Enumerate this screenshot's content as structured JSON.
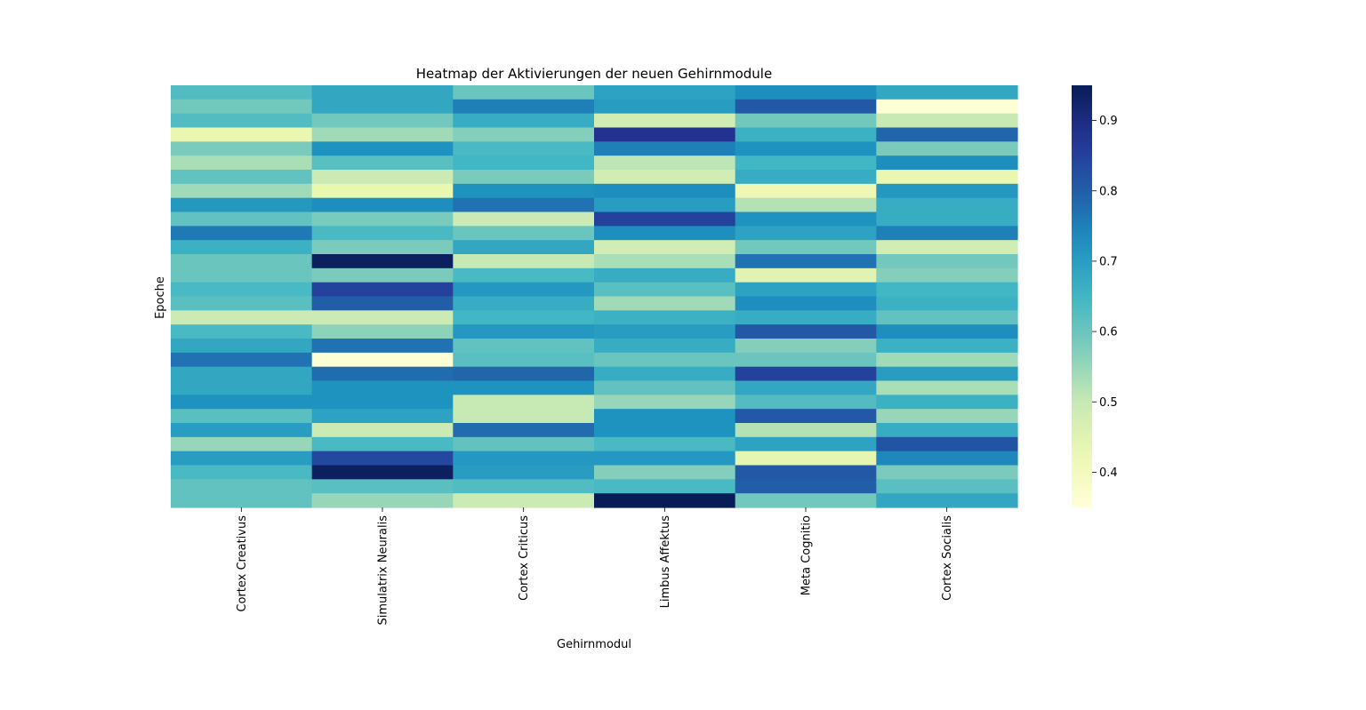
{
  "chart_data": {
    "type": "heatmap",
    "title": "Heatmap der Aktivierungen der neuen Gehirnmodule",
    "xlabel": "Gehirnmodul",
    "ylabel": "Epoche",
    "columns": [
      "Cortex Creativus",
      "Simulatrix Neuralis",
      "Cortex Criticus",
      "Limbus Affektus",
      "Meta Cognitio",
      "Cortex Socialis"
    ],
    "colormap": "YlGnBu",
    "vmin": 0.35,
    "vmax": 0.95,
    "colorbar_ticks": [
      "0.4",
      "0.5",
      "0.6",
      "0.7",
      "0.8",
      "0.9"
    ],
    "colorbar_tick_values": [
      0.4,
      0.5,
      0.6,
      0.7,
      0.8,
      0.9
    ],
    "grid": false,
    "values": [
      [
        0.63,
        0.68,
        0.6,
        0.69,
        0.73,
        0.68
      ],
      [
        0.59,
        0.68,
        0.75,
        0.7,
        0.81,
        0.36
      ],
      [
        0.63,
        0.59,
        0.67,
        0.48,
        0.59,
        0.5
      ],
      [
        0.43,
        0.54,
        0.57,
        0.88,
        0.66,
        0.79
      ],
      [
        0.58,
        0.72,
        0.64,
        0.75,
        0.72,
        0.58
      ],
      [
        0.53,
        0.62,
        0.65,
        0.51,
        0.65,
        0.73
      ],
      [
        0.61,
        0.49,
        0.58,
        0.48,
        0.67,
        0.43
      ],
      [
        0.54,
        0.43,
        0.72,
        0.73,
        0.42,
        0.71
      ],
      [
        0.71,
        0.73,
        0.77,
        0.7,
        0.52,
        0.67
      ],
      [
        0.61,
        0.58,
        0.49,
        0.85,
        0.72,
        0.67
      ],
      [
        0.76,
        0.64,
        0.6,
        0.73,
        0.69,
        0.75
      ],
      [
        0.66,
        0.58,
        0.68,
        0.48,
        0.59,
        0.48
      ],
      [
        0.6,
        0.94,
        0.5,
        0.53,
        0.77,
        0.59
      ],
      [
        0.6,
        0.58,
        0.64,
        0.67,
        0.45,
        0.57
      ],
      [
        0.64,
        0.85,
        0.71,
        0.62,
        0.69,
        0.65
      ],
      [
        0.62,
        0.8,
        0.67,
        0.54,
        0.73,
        0.66
      ],
      [
        0.49,
        0.49,
        0.65,
        0.66,
        0.67,
        0.61
      ],
      [
        0.64,
        0.56,
        0.71,
        0.7,
        0.81,
        0.73
      ],
      [
        0.68,
        0.77,
        0.61,
        0.67,
        0.57,
        0.66
      ],
      [
        0.77,
        0.36,
        0.62,
        0.6,
        0.6,
        0.54
      ],
      [
        0.68,
        0.78,
        0.79,
        0.67,
        0.85,
        0.7
      ],
      [
        0.68,
        0.72,
        0.72,
        0.61,
        0.68,
        0.53
      ],
      [
        0.72,
        0.72,
        0.5,
        0.55,
        0.63,
        0.66
      ],
      [
        0.62,
        0.69,
        0.5,
        0.72,
        0.81,
        0.55
      ],
      [
        0.7,
        0.49,
        0.78,
        0.72,
        0.52,
        0.67
      ],
      [
        0.55,
        0.64,
        0.61,
        0.64,
        0.69,
        0.82
      ],
      [
        0.7,
        0.84,
        0.71,
        0.71,
        0.44,
        0.74
      ],
      [
        0.64,
        0.94,
        0.7,
        0.57,
        0.81,
        0.58
      ],
      [
        0.61,
        0.62,
        0.63,
        0.64,
        0.8,
        0.62
      ],
      [
        0.61,
        0.55,
        0.49,
        0.95,
        0.59,
        0.68
      ]
    ]
  }
}
